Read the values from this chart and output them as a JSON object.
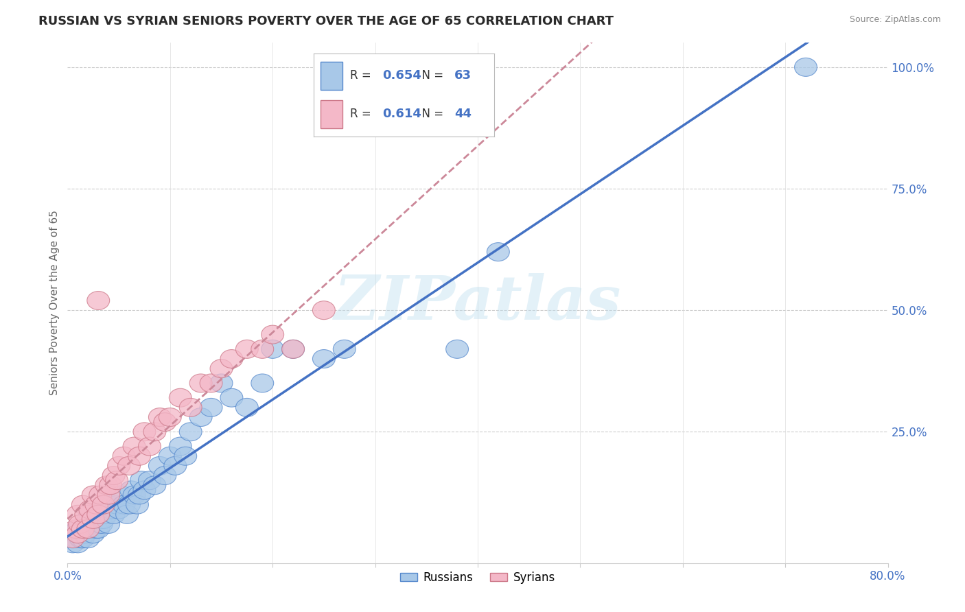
{
  "title": "RUSSIAN VS SYRIAN SENIORS POVERTY OVER THE AGE OF 65 CORRELATION CHART",
  "source": "Source: ZipAtlas.com",
  "ylabel": "Seniors Poverty Over the Age of 65",
  "xlim": [
    0.0,
    0.8
  ],
  "ylim": [
    -0.02,
    1.05
  ],
  "xtick_positions": [
    0.0,
    0.1,
    0.2,
    0.3,
    0.4,
    0.5,
    0.6,
    0.7,
    0.8
  ],
  "ytick_positions": [
    0.0,
    0.25,
    0.5,
    0.75,
    1.0
  ],
  "russian_R": "0.654",
  "russian_N": "63",
  "syrian_R": "0.614",
  "syrian_N": "44",
  "russian_face": "#a8c8e8",
  "russian_edge": "#5588cc",
  "syrian_face": "#f4b8c8",
  "syrian_edge": "#cc7788",
  "russian_line": "#4472c4",
  "syrian_line": "#cc8899",
  "watermark": "ZIPatlas",
  "legend_russians": "Russians",
  "legend_syrians": "Syrians",
  "text_dark": "#333333",
  "text_blue": "#4472c4",
  "text_label": "#666666",
  "russian_x": [
    0.005,
    0.008,
    0.01,
    0.01,
    0.012,
    0.013,
    0.015,
    0.015,
    0.017,
    0.018,
    0.02,
    0.02,
    0.022,
    0.022,
    0.025,
    0.025,
    0.027,
    0.028,
    0.03,
    0.03,
    0.032,
    0.033,
    0.035,
    0.035,
    0.038,
    0.04,
    0.04,
    0.042,
    0.045,
    0.048,
    0.05,
    0.052,
    0.055,
    0.058,
    0.06,
    0.062,
    0.065,
    0.068,
    0.07,
    0.072,
    0.075,
    0.08,
    0.085,
    0.09,
    0.095,
    0.1,
    0.105,
    0.11,
    0.115,
    0.12,
    0.13,
    0.14,
    0.15,
    0.16,
    0.175,
    0.19,
    0.2,
    0.22,
    0.25,
    0.27,
    0.38,
    0.42,
    0.72
  ],
  "russian_y": [
    0.02,
    0.03,
    0.02,
    0.05,
    0.04,
    0.03,
    0.03,
    0.05,
    0.04,
    0.06,
    0.03,
    0.07,
    0.05,
    0.08,
    0.04,
    0.07,
    0.06,
    0.05,
    0.05,
    0.08,
    0.07,
    0.06,
    0.07,
    0.1,
    0.08,
    0.06,
    0.1,
    0.09,
    0.08,
    0.1,
    0.09,
    0.12,
    0.1,
    0.08,
    0.1,
    0.13,
    0.12,
    0.1,
    0.12,
    0.15,
    0.13,
    0.15,
    0.14,
    0.18,
    0.16,
    0.2,
    0.18,
    0.22,
    0.2,
    0.25,
    0.28,
    0.3,
    0.35,
    0.32,
    0.3,
    0.35,
    0.42,
    0.42,
    0.4,
    0.42,
    0.42,
    0.62,
    1.0
  ],
  "syrian_x": [
    0.005,
    0.008,
    0.01,
    0.01,
    0.012,
    0.015,
    0.015,
    0.018,
    0.02,
    0.022,
    0.025,
    0.025,
    0.028,
    0.03,
    0.032,
    0.035,
    0.038,
    0.04,
    0.042,
    0.045,
    0.048,
    0.05,
    0.055,
    0.06,
    0.065,
    0.07,
    0.075,
    0.08,
    0.085,
    0.09,
    0.095,
    0.1,
    0.11,
    0.12,
    0.13,
    0.14,
    0.15,
    0.16,
    0.175,
    0.19,
    0.2,
    0.22,
    0.25,
    0.03
  ],
  "syrian_y": [
    0.03,
    0.05,
    0.04,
    0.08,
    0.06,
    0.05,
    0.1,
    0.08,
    0.05,
    0.09,
    0.07,
    0.12,
    0.1,
    0.08,
    0.12,
    0.1,
    0.14,
    0.12,
    0.14,
    0.16,
    0.15,
    0.18,
    0.2,
    0.18,
    0.22,
    0.2,
    0.25,
    0.22,
    0.25,
    0.28,
    0.27,
    0.28,
    0.32,
    0.3,
    0.35,
    0.35,
    0.38,
    0.4,
    0.42,
    0.42,
    0.45,
    0.42,
    0.5,
    0.52
  ]
}
